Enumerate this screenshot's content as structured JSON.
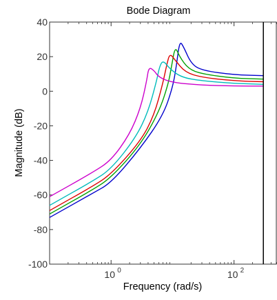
{
  "chart_data": {
    "type": "line",
    "title": "Bode Diagram",
    "xlabel": "Frequency  (rad/s)",
    "ylabel": "Magnitude (dB)",
    "x_scale": "log",
    "xlim": [
      0.1,
      500
    ],
    "ylim": [
      -100,
      40
    ],
    "x_ticks": [
      1,
      100
    ],
    "x_tick_labels": [
      {
        "base": "10",
        "exp": "0"
      },
      {
        "base": "10",
        "exp": "2"
      }
    ],
    "y_ticks": [
      -100,
      -80,
      -60,
      -40,
      -20,
      0,
      20,
      40
    ],
    "y_tick_labels": [
      "-100",
      "-80",
      "-60",
      "-40",
      "-20",
      "0",
      "20",
      "40"
    ],
    "grid": false,
    "vertical_line_x": 300,
    "series": [
      {
        "color": "#0000cc",
        "x": [
          0.1,
          0.5,
          1,
          3,
          7,
          10,
          11.5,
          13,
          15,
          20,
          30,
          100,
          300
        ],
        "y": [
          -73,
          -59,
          -53,
          -33,
          -14,
          2,
          14,
          29,
          26,
          16,
          12,
          9.5,
          9
        ]
      },
      {
        "color": "#00a000",
        "x": [
          0.1,
          0.5,
          1,
          3,
          6,
          8.5,
          9.7,
          11,
          13,
          18,
          30,
          100,
          300
        ],
        "y": [
          -71,
          -57,
          -50,
          -31,
          -12,
          4,
          15,
          26,
          20,
          13,
          10,
          7.5,
          7
        ]
      },
      {
        "color": "#dd0000",
        "x": [
          0.1,
          0.5,
          1,
          3,
          5,
          7,
          8,
          9,
          11,
          16,
          30,
          100,
          300
        ],
        "y": [
          -69,
          -55,
          -48,
          -29,
          -14,
          5,
          15,
          22,
          18,
          11,
          8,
          6,
          5.5
        ]
      },
      {
        "color": "#00bbbb",
        "x": [
          0.1,
          0.5,
          1,
          2.5,
          4,
          5.5,
          6.1,
          7,
          9,
          14,
          30,
          100,
          300
        ],
        "y": [
          -66,
          -52,
          -45,
          -27,
          -12,
          6,
          14,
          18,
          13,
          8,
          6,
          4.5,
          4
        ]
      },
      {
        "color": "#cc00cc",
        "x": [
          0.1,
          0.5,
          1,
          2,
          3,
          3.8,
          4.1,
          5,
          6,
          10,
          30,
          100,
          300
        ],
        "y": [
          -61,
          -47,
          -40,
          -25,
          -10,
          6,
          14,
          12,
          8,
          5,
          3.5,
          3,
          3
        ]
      }
    ]
  }
}
